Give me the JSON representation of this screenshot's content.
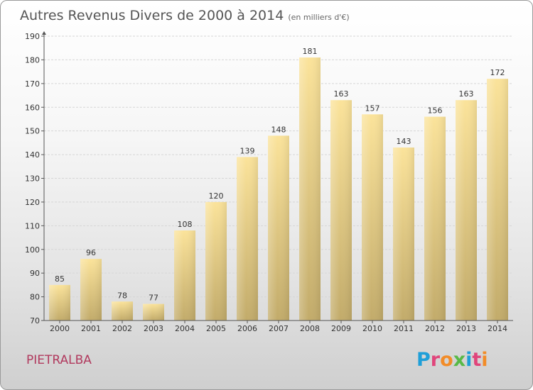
{
  "header": {
    "title": "Autres Revenus Divers de 2000 à 2014",
    "unit": "(en milliers d'€)"
  },
  "commune": "PIETRALBA",
  "logo": {
    "text": "Proxiti",
    "letter_colors": [
      "#1f9fd8",
      "#e0457b",
      "#f28c28",
      "#58b947",
      "#1f9fd8",
      "#e0457b",
      "#f28c28"
    ]
  },
  "colors": {
    "bar_light": "#fbe39a",
    "bar_dark": "#c2ab6a",
    "grid": "#d6d6d6",
    "axis": "#555555",
    "commune": "#b13a5e"
  },
  "chart_data": {
    "type": "bar",
    "title": "Autres Revenus Divers de 2000 à 2014",
    "subtitle": "(en milliers d'€)",
    "categories": [
      "2000",
      "2001",
      "2002",
      "2003",
      "2004",
      "2005",
      "2006",
      "2007",
      "2008",
      "2009",
      "2010",
      "2011",
      "2012",
      "2013",
      "2014"
    ],
    "values": [
      85,
      96,
      78,
      77,
      108,
      120,
      139,
      148,
      181,
      163,
      157,
      143,
      156,
      163,
      172
    ],
    "ylim": [
      70,
      190
    ],
    "yticks": [
      70,
      80,
      90,
      100,
      110,
      120,
      130,
      140,
      150,
      160,
      170,
      180,
      190
    ],
    "xlabel": "",
    "ylabel": "",
    "grid": true,
    "data_labels": true
  }
}
